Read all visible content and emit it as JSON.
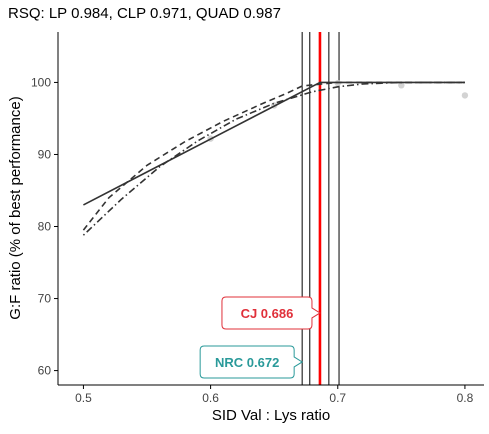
{
  "chart_data": {
    "type": "line",
    "title": "RSQ: LP 0.984, CLP 0.971, QUAD 0.987",
    "xlabel": "SID Val : Lys ratio",
    "ylabel": "G:F ratio (% of best performance)",
    "xlim": [
      0.48,
      0.815
    ],
    "ylim": [
      58,
      107
    ],
    "x_ticks": [
      "0.5",
      "0.6",
      "0.7",
      "0.8"
    ],
    "y_ticks": [
      "60",
      "70",
      "80",
      "90",
      "100"
    ],
    "grid": false,
    "series": [
      {
        "name": "LP",
        "style": "solid",
        "color": "#333333",
        "x": [
          0.5,
          0.686,
          0.8
        ],
        "y": [
          83.0,
          100.0,
          100.0
        ]
      },
      {
        "name": "CLP",
        "style": "dashed",
        "color": "#333333",
        "x": [
          0.5,
          0.52,
          0.55,
          0.58,
          0.61,
          0.64,
          0.66,
          0.672,
          0.7,
          0.8
        ],
        "y": [
          79.5,
          84.0,
          88.5,
          91.8,
          94.6,
          97.0,
          98.5,
          99.5,
          100.0,
          100.0
        ]
      },
      {
        "name": "QUAD",
        "style": "dotdash",
        "color": "#333333",
        "x": [
          0.5,
          0.53,
          0.56,
          0.59,
          0.62,
          0.65,
          0.68,
          0.7,
          0.72,
          0.75,
          0.8
        ],
        "y": [
          78.8,
          83.8,
          88.3,
          91.9,
          94.9,
          97.1,
          98.7,
          99.4,
          99.8,
          100.0,
          100.0
        ]
      }
    ],
    "observed_points": {
      "color": "#d3d3d3",
      "x": [
        0.6,
        0.65,
        0.7,
        0.75,
        0.8
      ],
      "y": [
        92.2,
        96.8,
        99.9,
        99.6,
        98.2
      ]
    },
    "vertical_lines": [
      {
        "x": 0.672,
        "color": "#000000"
      },
      {
        "x": 0.678,
        "color": "#000000"
      },
      {
        "x": 0.686,
        "color": "#ff0000"
      },
      {
        "x": 0.693,
        "color": "#000000"
      },
      {
        "x": 0.701,
        "color": "#000000"
      }
    ],
    "annotations": [
      {
        "text": "CJ 0.686",
        "x": 0.686,
        "y": 68,
        "color": "#e0303a"
      },
      {
        "text": "NRC 0.672",
        "x": 0.672,
        "y": 61.2,
        "color": "#2a9a9a"
      }
    ]
  }
}
